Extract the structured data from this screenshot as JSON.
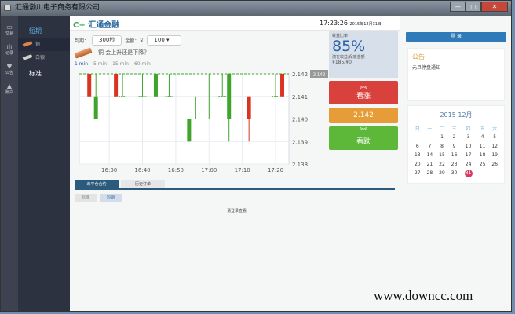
{
  "window": {
    "title": "汇通渤川电子商务有限公司",
    "minimize": "—",
    "maximize": "□",
    "close": "✕"
  },
  "nav": [
    {
      "icon": "monitor-icon",
      "glyph": "▭",
      "label": "交易"
    },
    {
      "icon": "chart-icon",
      "glyph": "ılı",
      "label": "记录"
    },
    {
      "icon": "heart-icon",
      "glyph": "♥",
      "label": "公告"
    },
    {
      "icon": "user-icon",
      "glyph": "▲",
      "label": "账户"
    }
  ],
  "sidebar": {
    "section1": "短期",
    "items": [
      {
        "label": "铜",
        "color": "#d9844a"
      },
      {
        "label": "白银",
        "color": "#cfcfcf"
      }
    ],
    "section2": "标准"
  },
  "header": {
    "logo_mark": "C+",
    "logo": "汇通金融",
    "time": "17:23:26",
    "date": "2015年12月31日"
  },
  "controls": {
    "expiry_label": "到期：",
    "expiry_value": "300秒",
    "amount_label": "金额：￥",
    "amount_value": "100 ▾"
  },
  "question": "铜  会上升还是下降？",
  "timeframes": [
    {
      "label": "1 min",
      "active": true
    },
    {
      "label": "5 min"
    },
    {
      "label": "15 min"
    },
    {
      "label": "60 min"
    }
  ],
  "panel": {
    "ratio_label": "收益比率",
    "ratio": "85%",
    "profit_label": "潜在收益/保底金额",
    "profit": "¥185/¥0",
    "up_label": "看涨",
    "up_icon": "chevron-double-up-icon",
    "price": "2.142",
    "down_label": "看跌",
    "down_icon": "chevron-double-down-icon"
  },
  "tabs": [
    {
      "label": "未平仓合约",
      "active": true
    },
    {
      "label": "历史订单"
    }
  ],
  "subtabs": [
    {
      "label": "标准"
    },
    {
      "label": "短期",
      "active": true
    }
  ],
  "login_msg": "请登录查看",
  "right": {
    "login": "登 录",
    "notice_title": "公告",
    "notice_item": "元旦停盘通知",
    "cal_title": "2015 12月",
    "weekdays": [
      "日",
      "一",
      "二",
      "三",
      "四",
      "五",
      "六"
    ],
    "days": [
      [
        null,
        null,
        1,
        2,
        3,
        4,
        5
      ],
      [
        6,
        7,
        8,
        9,
        10,
        11,
        12
      ],
      [
        13,
        14,
        15,
        16,
        17,
        18,
        19
      ],
      [
        20,
        21,
        22,
        23,
        24,
        25,
        26
      ],
      [
        27,
        28,
        29,
        30,
        31,
        null,
        null
      ]
    ],
    "today": 31
  },
  "watermark": "www.downcc.com",
  "chart_data": {
    "type": "candlestick",
    "xticks": [
      "16:30",
      "16:40",
      "16:50",
      "17:00",
      "17:10",
      "17:20"
    ],
    "yticks": [
      "2.138",
      "2.139",
      "2.140",
      "2.141",
      "2.142"
    ],
    "ylim": [
      2.138,
      2.142
    ],
    "xlim": [
      "16:21",
      "17:24"
    ],
    "current_price": "2.142",
    "colors": {
      "red": "#d9341f",
      "green": "#3fa52a"
    },
    "candles": [
      {
        "t": "16:24",
        "o": 2.141,
        "c": 2.142,
        "h": 2.142,
        "l": 2.141,
        "color": "red"
      },
      {
        "t": "16:26",
        "o": 2.141,
        "c": 2.14,
        "h": 2.142,
        "l": 2.14,
        "color": "green"
      },
      {
        "t": "16:32",
        "o": 2.141,
        "c": 2.142,
        "h": 2.142,
        "l": 2.141,
        "color": "red"
      },
      {
        "t": "16:34",
        "o": 2.141,
        "c": 2.141,
        "h": 2.142,
        "l": 2.141,
        "color": "green"
      },
      {
        "t": "16:40",
        "o": 2.141,
        "c": 2.141,
        "h": 2.142,
        "l": 2.141,
        "color": "green"
      },
      {
        "t": "16:44",
        "o": 2.142,
        "c": 2.141,
        "h": 2.142,
        "l": 2.141,
        "color": "green"
      },
      {
        "t": "16:48",
        "o": 2.141,
        "c": 2.141,
        "h": 2.142,
        "l": 2.141,
        "color": "green"
      },
      {
        "t": "16:54",
        "o": 2.14,
        "c": 2.139,
        "h": 2.14,
        "l": 2.139,
        "color": "green"
      },
      {
        "t": "16:56",
        "o": 2.14,
        "c": 2.14,
        "h": 2.141,
        "l": 2.14,
        "color": "green"
      },
      {
        "t": "17:00",
        "o": 2.14,
        "c": 2.14,
        "h": 2.142,
        "l": 2.14,
        "color": "green"
      },
      {
        "t": "17:04",
        "o": 2.141,
        "c": 2.141,
        "h": 2.142,
        "l": 2.141,
        "color": "green"
      },
      {
        "t": "17:06",
        "o": 2.142,
        "c": 2.14,
        "h": 2.142,
        "l": 2.139,
        "color": "green"
      },
      {
        "t": "17:12",
        "o": 2.14,
        "c": 2.141,
        "h": 2.141,
        "l": 2.139,
        "color": "red"
      },
      {
        "t": "17:20",
        "o": 2.141,
        "c": 2.141,
        "h": 2.142,
        "l": 2.141,
        "color": "green"
      },
      {
        "t": "17:22",
        "o": 2.141,
        "c": 2.142,
        "h": 2.142,
        "l": 2.141,
        "color": "red"
      }
    ]
  }
}
